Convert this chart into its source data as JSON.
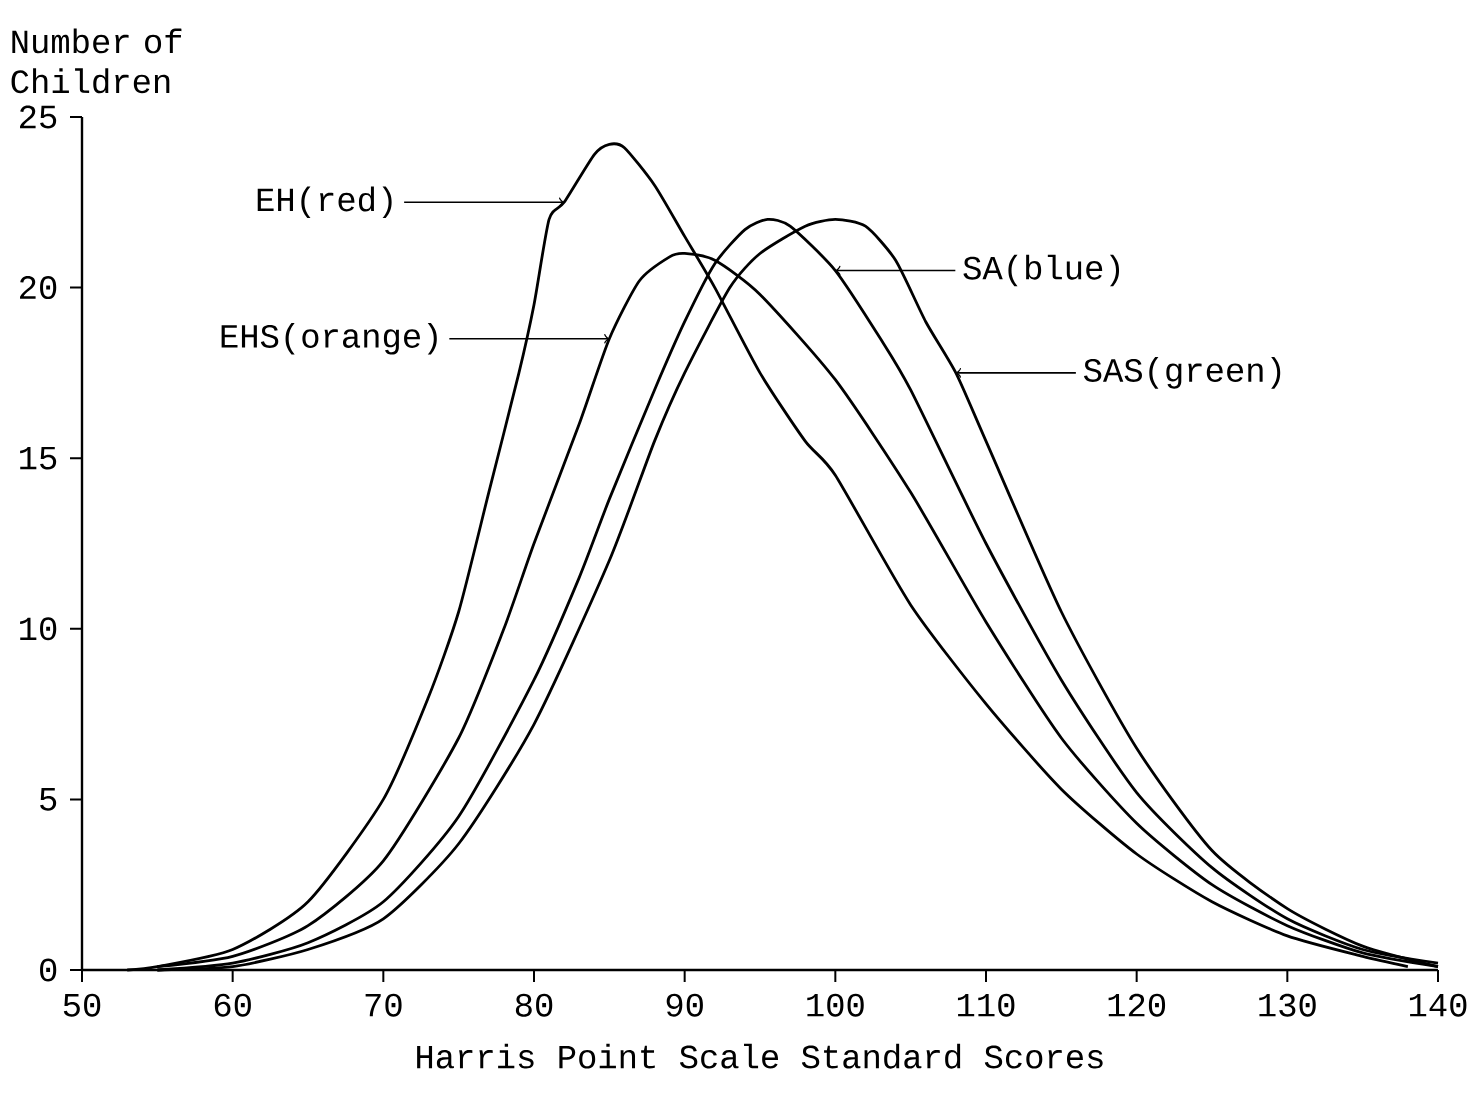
{
  "chart_data": {
    "type": "line",
    "xlabel": "Harris Point Scale Standard Scores",
    "ylabel": "Number of Children",
    "xlim": [
      50,
      140
    ],
    "ylim": [
      0,
      25
    ],
    "xticks": [
      50,
      60,
      70,
      80,
      90,
      100,
      110,
      120,
      130,
      140
    ],
    "yticks": [
      0,
      5,
      10,
      15,
      20,
      25
    ],
    "grid": false,
    "legend": "top right",
    "marker": "none",
    "line_style": "solid",
    "series": [
      {
        "name": "EH(red)",
        "color": "#000000",
        "x": [
          53,
          55,
          60,
          65,
          70,
          73,
          75,
          77,
          79,
          80,
          81,
          82,
          84,
          85,
          86,
          88,
          90,
          92,
          95,
          98,
          100,
          105,
          110,
          115,
          120,
          125,
          130,
          135,
          138
        ],
        "values": [
          0,
          0.1,
          0.6,
          2.0,
          5.0,
          8.0,
          10.5,
          14.0,
          17.5,
          19.5,
          22.0,
          22.5,
          23.9,
          24.2,
          24.1,
          23.0,
          21.5,
          20.0,
          17.5,
          15.5,
          14.5,
          10.7,
          7.8,
          5.3,
          3.4,
          2.0,
          1.0,
          0.4,
          0.1
        ]
      },
      {
        "name": "EHS(orange)",
        "color": "#000000",
        "x": [
          55,
          60,
          65,
          70,
          75,
          78,
          80,
          83,
          85,
          87,
          89,
          90,
          92,
          95,
          100,
          105,
          110,
          115,
          120,
          125,
          130,
          135,
          140
        ],
        "values": [
          0.1,
          0.4,
          1.3,
          3.2,
          6.8,
          10.0,
          12.5,
          16.0,
          18.5,
          20.2,
          20.9,
          21.0,
          20.8,
          19.8,
          17.3,
          14.0,
          10.2,
          6.8,
          4.3,
          2.5,
          1.3,
          0.5,
          0.1
        ]
      },
      {
        "name": "SA(blue)",
        "color": "#000000",
        "x": [
          55,
          60,
          65,
          70,
          75,
          80,
          83,
          85,
          88,
          90,
          92,
          94,
          95.5,
          97,
          100,
          103,
          105,
          110,
          115,
          120,
          125,
          130,
          135,
          140
        ],
        "values": [
          0,
          0.2,
          0.8,
          2.0,
          4.5,
          8.5,
          11.5,
          13.8,
          17.0,
          19.0,
          20.7,
          21.7,
          22.0,
          21.8,
          20.5,
          18.5,
          17.0,
          12.5,
          8.5,
          5.2,
          3.0,
          1.5,
          0.6,
          0.2
        ]
      },
      {
        "name": "SAS(green)",
        "color": "#000000",
        "x": [
          55,
          60,
          65,
          70,
          75,
          80,
          85,
          88,
          90,
          93,
          95,
          98,
          100,
          102,
          104,
          106,
          108,
          110,
          115,
          120,
          125,
          130,
          135,
          140
        ],
        "values": [
          0,
          0.1,
          0.6,
          1.5,
          3.7,
          7.2,
          12.0,
          15.5,
          17.5,
          20.0,
          21.0,
          21.8,
          22.0,
          21.8,
          20.8,
          19.0,
          17.5,
          15.5,
          10.5,
          6.5,
          3.5,
          1.8,
          0.7,
          0.1
        ]
      }
    ]
  }
}
